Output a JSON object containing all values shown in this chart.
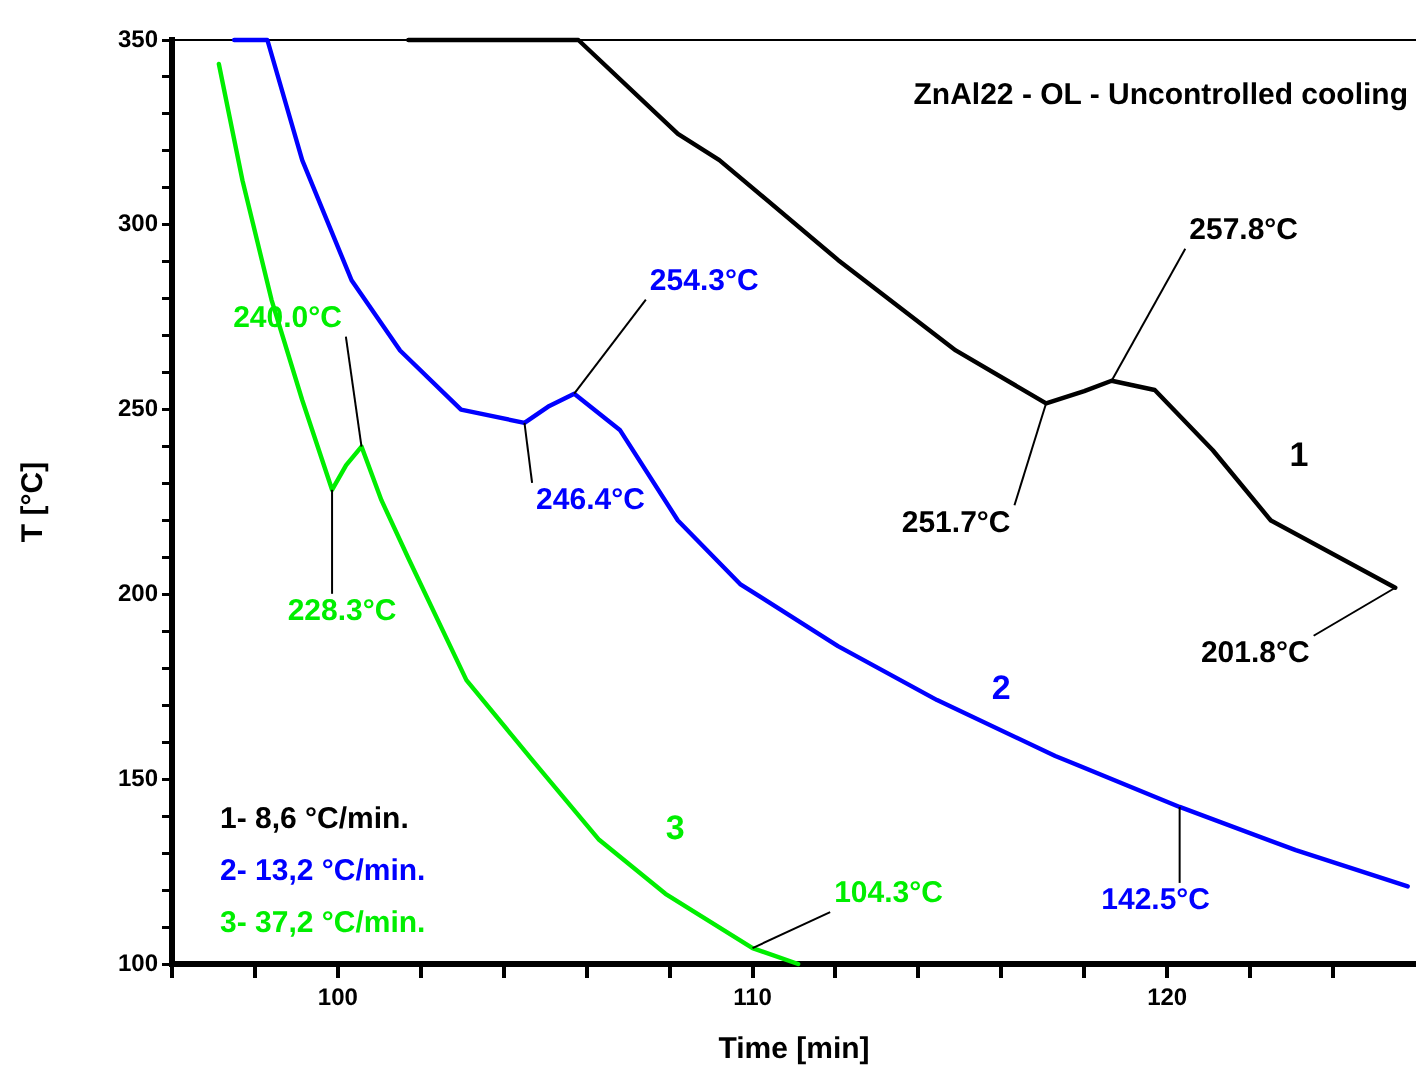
{
  "chart_data": {
    "type": "line",
    "title": "ZnAl22 - OL - Uncontrolled cooling",
    "xlabel": "Time [min]",
    "ylabel": "T [°C]",
    "xlim": [
      96,
      126
    ],
    "ylim": [
      100,
      350
    ],
    "xticks": [
      {
        "value": 96,
        "label": null
      },
      {
        "value": 98,
        "label": null
      },
      100,
      {
        "value": 102,
        "label": null
      },
      {
        "value": 104,
        "label": null
      },
      {
        "value": 106,
        "label": null
      },
      {
        "value": 108,
        "label": null
      },
      110,
      {
        "value": 112,
        "label": null
      },
      {
        "value": 114,
        "label": null
      },
      {
        "value": 116,
        "label": null
      },
      {
        "value": 118,
        "label": null
      },
      120,
      {
        "value": 122,
        "label": null
      },
      {
        "value": 124,
        "label": null
      }
    ],
    "yticks": [
      100,
      {
        "value": 110,
        "label": null
      },
      {
        "value": 120,
        "label": null
      },
      {
        "value": 130,
        "label": null
      },
      {
        "value": 140,
        "label": null
      },
      150,
      {
        "value": 160,
        "label": null
      },
      {
        "value": 170,
        "label": null
      },
      {
        "value": 180,
        "label": null
      },
      {
        "value": 190,
        "label": null
      },
      200,
      {
        "value": 210,
        "label": null
      },
      {
        "value": 220,
        "label": null
      },
      {
        "value": 230,
        "label": null
      },
      {
        "value": 240,
        "label": null
      },
      250,
      {
        "value": 260,
        "label": null
      },
      {
        "value": 270,
        "label": null
      },
      {
        "value": 280,
        "label": null
      },
      {
        "value": 290,
        "label": null
      },
      300,
      {
        "value": 310,
        "label": null
      },
      {
        "value": 320,
        "label": null
      },
      {
        "value": 330,
        "label": null
      },
      {
        "value": 340,
        "label": null
      },
      350
    ],
    "series": [
      {
        "name": "1",
        "color": "#000000",
        "x": [
          101.7,
          105.8,
          108.2,
          109.2,
          112.06,
          114.9,
          117.08,
          118.0,
          118.66,
          119.7,
          121.1,
          122.5,
          125.5
        ],
        "values": [
          350,
          350,
          324.6,
          317.5,
          290.5,
          266,
          251.7,
          255,
          257.8,
          255.3,
          239,
          220,
          201.8
        ]
      },
      {
        "name": "2",
        "color": "#0000ff",
        "x": [
          97.5,
          98.3,
          99.14,
          100.33,
          101.5,
          102.97,
          104.5,
          105.1,
          105.7,
          106.8,
          108.2,
          109.7,
          112.06,
          114.45,
          117.3,
          120.3,
          123.1,
          125.8
        ],
        "values": [
          350,
          350,
          317.5,
          285,
          266,
          250,
          246.4,
          251,
          254.3,
          244.5,
          220,
          202.8,
          186,
          171.4,
          156.3,
          142.5,
          130.8,
          121
        ]
      },
      {
        "name": "3",
        "color": "#00ee00",
        "x": [
          97.13,
          97.7,
          98.4,
          99.14,
          99.86,
          100.2,
          100.57,
          101.05,
          101.72,
          103.1,
          104.7,
          106.3,
          107.9,
          110.0,
          111.1
        ],
        "values": [
          343.5,
          312,
          279.7,
          252.6,
          228.3,
          235,
          240.0,
          225.5,
          209.3,
          176.8,
          155,
          133.6,
          119,
          104.3,
          100
        ]
      }
    ],
    "annotations": [
      {
        "text": "240.0°C",
        "x": 100.57,
        "y": 240.0
      },
      {
        "text": "228.3°C",
        "x": 99.86,
        "y": 228.3
      },
      {
        "text": "246.4°C",
        "x": 104.5,
        "y": 246.4
      },
      {
        "text": "254.3°C",
        "x": 105.7,
        "y": 254.3
      },
      {
        "text": "251.7°C",
        "x": 117.08,
        "y": 251.7
      },
      {
        "text": "257.8°C",
        "x": 118.66,
        "y": 257.8
      },
      {
        "text": "201.8°C",
        "x": 125.5,
        "y": 201.8
      },
      {
        "text": "142.5°C",
        "x": 120.3,
        "y": 142.5
      },
      {
        "text": "104.3°C",
        "x": 110.0,
        "y": 104.3
      },
      "1- 8,6 °C/min.",
      "2- 13,2 °C/min.",
      "3- 37,2 °C/min."
    ]
  }
}
